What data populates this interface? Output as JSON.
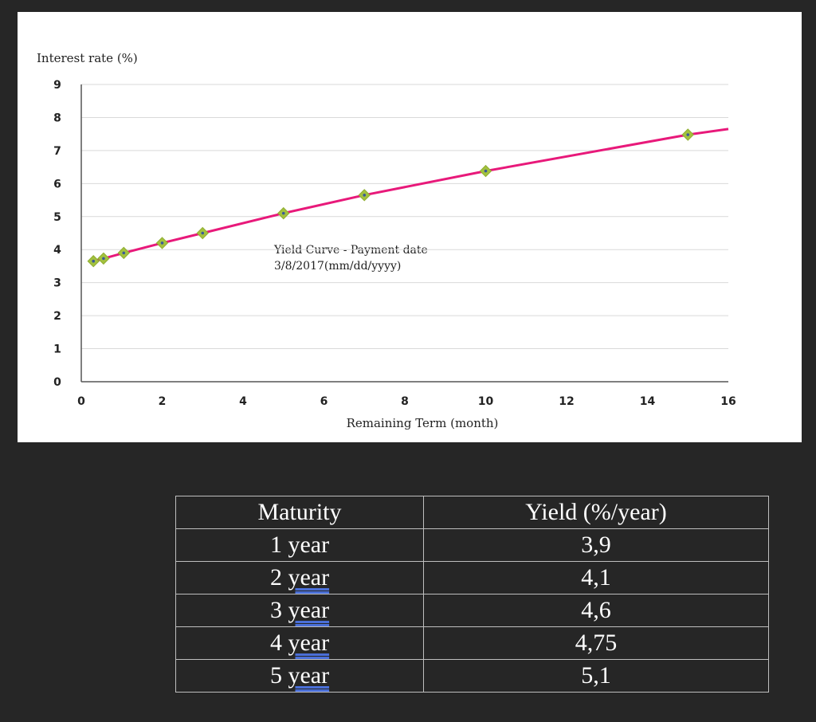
{
  "chart_data": {
    "type": "line",
    "ylabel": "Interest rate (%)",
    "xlabel": "Remaining Term (month)",
    "annotation": [
      "Yield Curve - Payment date",
      "3/8/2017(mm/dd/yyyy)"
    ],
    "xlim": [
      0,
      16
    ],
    "ylim": [
      0,
      9
    ],
    "x_ticks": [
      0,
      2,
      4,
      6,
      8,
      10,
      12,
      14,
      16
    ],
    "y_ticks": [
      0,
      1,
      2,
      3,
      4,
      5,
      6,
      7,
      8,
      9
    ],
    "grid": "horizontal",
    "line_color": "#e8197a",
    "marker_color": "#a3c13e",
    "series": [
      {
        "x": [
          0.3,
          0.55,
          1.05,
          2.0,
          3.0,
          5.0,
          7.0,
          10.0,
          15.0
        ],
        "y": [
          3.65,
          3.73,
          3.9,
          4.2,
          4.5,
          5.1,
          5.65,
          6.38,
          7.48
        ]
      }
    ],
    "line_curve": {
      "x": [
        0.3,
        0.55,
        1.05,
        2.0,
        3.0,
        5.0,
        7.0,
        10.0,
        15.0,
        16.0
      ],
      "y": [
        3.65,
        3.73,
        3.9,
        4.2,
        4.5,
        5.1,
        5.65,
        6.38,
        7.48,
        7.65
      ]
    }
  },
  "table": {
    "headers": [
      "Maturity",
      "Yield (%/year)"
    ],
    "rows": [
      {
        "num": "1",
        "unit": "year",
        "yield": "3,9"
      },
      {
        "num": "2",
        "unit": "year",
        "yield": "4,1"
      },
      {
        "num": "3",
        "unit": "year",
        "yield": "4,6"
      },
      {
        "num": "4",
        "unit": "year",
        "yield": "4,75"
      },
      {
        "num": "5",
        "unit": "year",
        "yield": "5,1"
      }
    ]
  }
}
